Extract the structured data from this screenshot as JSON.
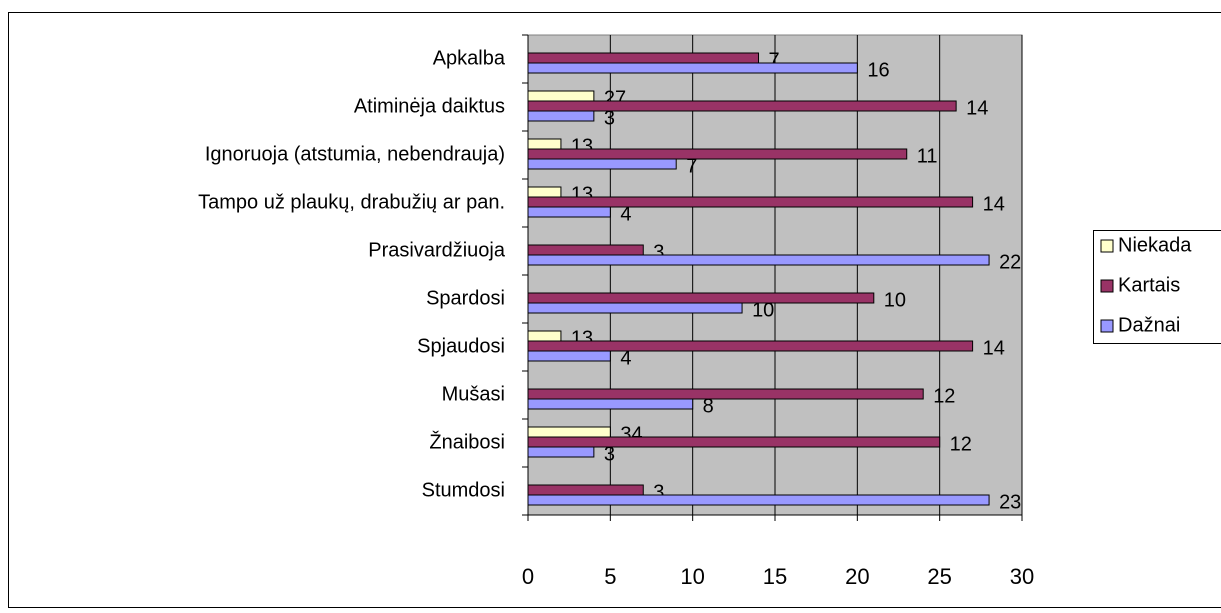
{
  "chart_data": {
    "type": "barh",
    "categories": [
      "Apkalba",
      "Atiminėja daiktus",
      "Ignoruoja (atstumia, nebendrauja)",
      "Tampo už plaukų, drabužių ar pan.",
      "Prasivardžiuoja",
      "Spardosi",
      "Spjaudosi",
      "Mušasi",
      "Žnaibosi",
      "Stumdosi"
    ],
    "series": [
      {
        "name": "Niekada",
        "color": "#ffffcc",
        "values": [
          null,
          4,
          2,
          2,
          null,
          null,
          2,
          null,
          5,
          null
        ],
        "annotations": [
          null,
          "27",
          "13",
          "13",
          null,
          null,
          "13",
          null,
          "34",
          null
        ]
      },
      {
        "name": "Kartais",
        "color": "#993366",
        "values": [
          14,
          26,
          23,
          27,
          7,
          21,
          27,
          24,
          25,
          7
        ],
        "annotations": [
          "7",
          "14",
          "11",
          "14",
          "3",
          "10",
          "14",
          "12",
          "12",
          "3"
        ]
      },
      {
        "name": "Dažnai",
        "color": "#9999ff",
        "values": [
          20,
          4,
          9,
          5,
          28,
          13,
          5,
          10,
          4,
          28
        ],
        "annotations": [
          "16",
          "3",
          "7",
          "4",
          "22",
          "10",
          "4",
          "8",
          "3",
          "23"
        ]
      }
    ],
    "xlim": [
      0,
      30
    ],
    "xticks": [
      0,
      5,
      10,
      15,
      20,
      25,
      30
    ],
    "grid": true,
    "legend": "right"
  }
}
